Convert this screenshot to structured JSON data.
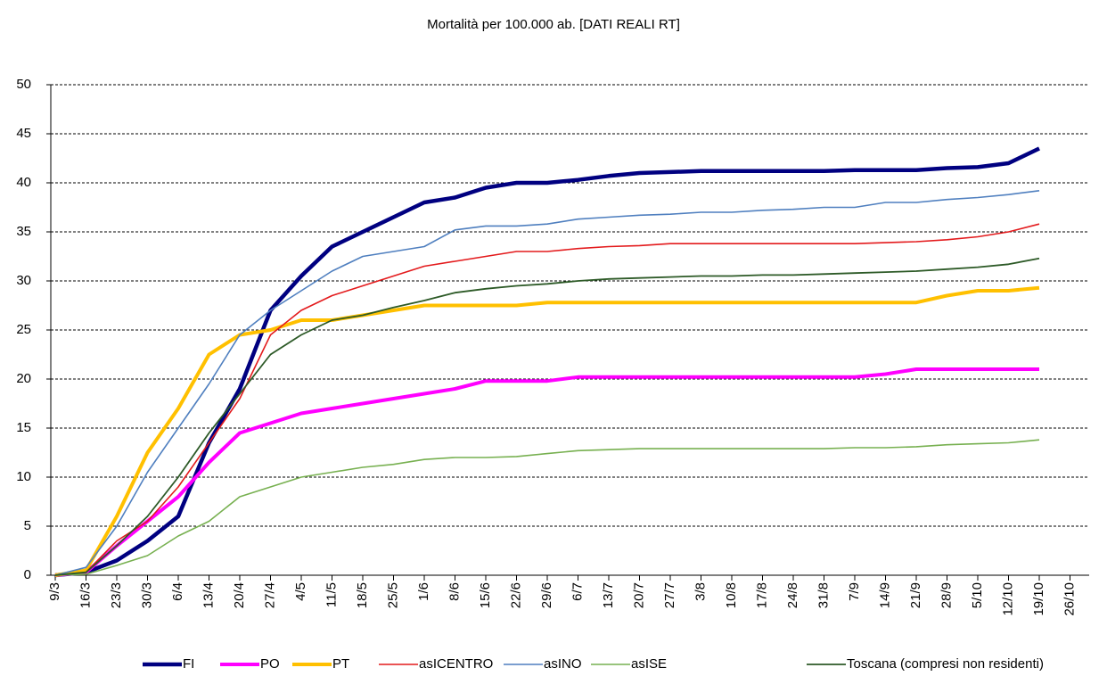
{
  "chart_data": {
    "type": "line",
    "title": "Mortalità per 100.000 ab. [DATI REALI RT]",
    "categories": [
      "9/3",
      "16/3",
      "23/3",
      "30/3",
      "6/4",
      "13/4",
      "20/4",
      "27/4",
      "4/5",
      "11/5",
      "18/5",
      "25/5",
      "1/6",
      "8/6",
      "15/6",
      "22/6",
      "29/6",
      "6/7",
      "13/7",
      "20/7",
      "27/7",
      "3/8",
      "10/8",
      "17/8",
      "24/8",
      "31/8",
      "7/9",
      "14/9",
      "21/9",
      "28/9",
      "5/10",
      "12/10",
      "19/10",
      "26/10"
    ],
    "ylim": [
      0,
      50
    ],
    "yticks": [
      0,
      5,
      10,
      15,
      20,
      25,
      30,
      35,
      40,
      45,
      50
    ],
    "grid": true,
    "legend": "bottom",
    "series": [
      {
        "name": "FI",
        "color": "#000080",
        "width": 4.5,
        "values": [
          0,
          0.3,
          1.5,
          3.5,
          6,
          13.5,
          19,
          27,
          30.5,
          33.5,
          35,
          36.5,
          38,
          38.5,
          39.5,
          40,
          40,
          40.3,
          40.7,
          41,
          41.1,
          41.2,
          41.2,
          41.2,
          41.2,
          41.2,
          41.3,
          41.3,
          41.3,
          41.5,
          41.6,
          42,
          43.5,
          null
        ]
      },
      {
        "name": "PO",
        "color": "#ff00ff",
        "width": 4,
        "values": [
          0,
          0.3,
          3,
          5.5,
          8,
          11.5,
          14.5,
          15.5,
          16.5,
          17,
          17.5,
          18,
          18.5,
          19,
          19.8,
          19.8,
          19.8,
          20.2,
          20.2,
          20.2,
          20.2,
          20.2,
          20.2,
          20.2,
          20.2,
          20.2,
          20.2,
          20.5,
          21,
          21,
          21,
          21,
          21,
          null
        ]
      },
      {
        "name": "PT",
        "color": "#ffc000",
        "width": 4,
        "values": [
          0,
          0.5,
          6,
          12.5,
          17,
          22.5,
          24.5,
          25,
          26,
          26,
          26.5,
          27,
          27.5,
          27.5,
          27.5,
          27.5,
          27.8,
          27.8,
          27.8,
          27.8,
          27.8,
          27.8,
          27.8,
          27.8,
          27.8,
          27.8,
          27.8,
          27.8,
          27.8,
          28.5,
          29,
          29,
          29.3,
          null
        ]
      },
      {
        "name": "asICENTRO",
        "color": "#e31a1c",
        "width": 1.6,
        "values": [
          0,
          0.3,
          3.5,
          5.5,
          9,
          13.5,
          18,
          24.5,
          27,
          28.5,
          29.5,
          30.5,
          31.5,
          32,
          32.5,
          33,
          33,
          33.3,
          33.5,
          33.6,
          33.8,
          33.8,
          33.8,
          33.8,
          33.8,
          33.8,
          33.8,
          33.9,
          34,
          34.2,
          34.5,
          35,
          35.8,
          null
        ]
      },
      {
        "name": "asINO",
        "color": "#4f7fbf",
        "width": 1.6,
        "values": [
          0,
          0.8,
          5,
          10.5,
          15,
          19.5,
          24.5,
          27,
          29,
          31,
          32.5,
          33,
          33.5,
          35.2,
          35.6,
          35.6,
          35.8,
          36.3,
          36.5,
          36.7,
          36.8,
          37,
          37,
          37.2,
          37.3,
          37.5,
          37.5,
          38,
          38,
          38.3,
          38.5,
          38.8,
          39.2,
          null
        ]
      },
      {
        "name": "asISE",
        "color": "#77b050",
        "width": 1.6,
        "values": [
          0,
          0.1,
          1,
          2,
          4,
          5.5,
          8,
          9,
          10,
          10.5,
          11,
          11.3,
          11.8,
          12,
          12,
          12.1,
          12.4,
          12.7,
          12.8,
          12.9,
          12.9,
          12.9,
          12.9,
          12.9,
          12.9,
          12.9,
          13,
          13,
          13.1,
          13.3,
          13.4,
          13.5,
          13.8,
          null
        ]
      },
      {
        "name": "Toscana (compresi non residenti)",
        "color": "#2d5a27",
        "width": 1.8,
        "values": [
          0,
          0.3,
          3,
          6,
          10,
          14.5,
          18.5,
          22.5,
          24.5,
          26,
          26.5,
          27.3,
          28,
          28.8,
          29.2,
          29.5,
          29.7,
          30,
          30.2,
          30.3,
          30.4,
          30.5,
          30.5,
          30.6,
          30.6,
          30.7,
          30.8,
          30.9,
          31,
          31.2,
          31.4,
          31.7,
          32.3,
          null
        ]
      }
    ]
  }
}
